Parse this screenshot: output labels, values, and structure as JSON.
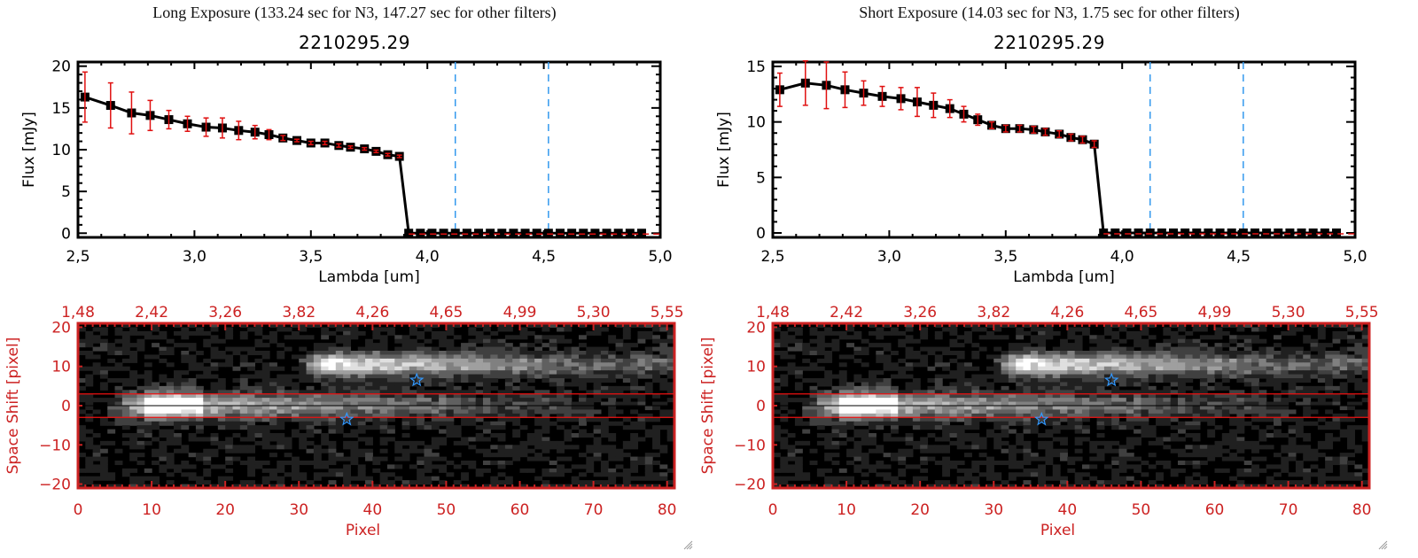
{
  "panels": [
    {
      "exposure_title": "Long Exposure (133.24 sec for N3, 147.27 sec for other filters)",
      "object_title": "2210295.29",
      "chart_data": [
        {
          "type": "line",
          "title": "2210295.29",
          "xlabel": "Lambda [um]",
          "ylabel": "Flux [mJy]",
          "xlim": [
            2.5,
            5.0
          ],
          "ylim": [
            -0.5,
            20.5
          ],
          "xticks": [
            "2.5",
            "3.0",
            "3.5",
            "4.0",
            "4.5",
            "5.0"
          ],
          "yticks": [
            "0",
            "5",
            "10",
            "15",
            "20"
          ],
          "vlines": [
            4.12,
            4.52
          ],
          "series": [
            {
              "name": "flux",
              "x": [
                2.53,
                2.64,
                2.73,
                2.81,
                2.89,
                2.97,
                3.05,
                3.12,
                3.19,
                3.26,
                3.32,
                3.38,
                3.44,
                3.5,
                3.56,
                3.62,
                3.67,
                3.73,
                3.78,
                3.83,
                3.88,
                3.92,
                3.97,
                4.02,
                4.07,
                4.12,
                4.17,
                4.22,
                4.27,
                4.32,
                4.37,
                4.42,
                4.47,
                4.52,
                4.57,
                4.62,
                4.67,
                4.72,
                4.77,
                4.82,
                4.87,
                4.92
              ],
              "y": [
                16.3,
                15.3,
                14.4,
                14.1,
                13.6,
                13.1,
                12.7,
                12.6,
                12.3,
                12.1,
                11.8,
                11.4,
                11.1,
                10.8,
                10.8,
                10.5,
                10.3,
                10.1,
                9.8,
                9.4,
                9.2,
                0,
                0,
                0,
                0,
                0,
                0,
                0,
                0,
                0,
                0,
                0,
                0,
                0,
                0,
                0,
                0,
                0,
                0,
                0,
                0,
                0
              ],
              "err": [
                3.0,
                2.7,
                2.5,
                1.8,
                1.1,
                0.9,
                1.1,
                1.2,
                1.1,
                0.8,
                0.6,
                0.3,
                0.15,
                0.2,
                0.2,
                0.2,
                0.15,
                0.15,
                0.15,
                0.15,
                0.15,
                0,
                0,
                0,
                0,
                0,
                0,
                0,
                0,
                0,
                0,
                0,
                0,
                0,
                0,
                0,
                0,
                0,
                0,
                0,
                0,
                0
              ]
            }
          ]
        },
        {
          "type": "heatmap",
          "xlabel": "Pixel",
          "ylabel": "Space Shift [pixel]",
          "xlim": [
            0,
            81
          ],
          "ylim": [
            -21,
            21
          ],
          "xticks": [
            "0",
            "10",
            "20",
            "30",
            "40",
            "50",
            "60",
            "70",
            "80"
          ],
          "yticks": [
            "-20",
            "-10",
            "0",
            "10",
            "20"
          ],
          "top_ticks": [
            "1.48",
            "2.42",
            "3.26",
            "3.82",
            "4.26",
            "4.65",
            "4.99",
            "5.30",
            "5.55"
          ],
          "aperture_lines": [
            3,
            -3
          ],
          "stars": [
            {
              "x": 46,
              "y": 6.5
            },
            {
              "x": 36.5,
              "y": -3.5
            }
          ]
        }
      ]
    },
    {
      "exposure_title": "Short Exposure (14.03 sec for N3, 1.75 sec for other filters)",
      "object_title": "2210295.29",
      "chart_data": [
        {
          "type": "line",
          "title": "2210295.29",
          "xlabel": "Lambda [um]",
          "ylabel": "Flux [mJy]",
          "xlim": [
            2.5,
            5.0
          ],
          "ylim": [
            -0.4,
            15.4
          ],
          "xticks": [
            "2.5",
            "3.0",
            "3.5",
            "4.0",
            "4.5",
            "5.0"
          ],
          "yticks": [
            "0",
            "5",
            "10",
            "15"
          ],
          "vlines": [
            4.12,
            4.52
          ],
          "series": [
            {
              "name": "flux",
              "x": [
                2.53,
                2.64,
                2.73,
                2.81,
                2.89,
                2.97,
                3.05,
                3.12,
                3.19,
                3.26,
                3.32,
                3.38,
                3.44,
                3.5,
                3.56,
                3.62,
                3.67,
                3.73,
                3.78,
                3.83,
                3.88,
                3.92,
                3.97,
                4.02,
                4.07,
                4.12,
                4.17,
                4.22,
                4.27,
                4.32,
                4.37,
                4.42,
                4.47,
                4.52,
                4.57,
                4.62,
                4.67,
                4.72,
                4.77,
                4.82,
                4.87,
                4.92
              ],
              "y": [
                12.9,
                13.5,
                13.3,
                12.9,
                12.6,
                12.3,
                12.1,
                11.8,
                11.5,
                11.2,
                10.7,
                10.2,
                9.7,
                9.4,
                9.4,
                9.3,
                9.1,
                8.9,
                8.6,
                8.4,
                8.0,
                0,
                0,
                0,
                0,
                0,
                0,
                0,
                0,
                0,
                0,
                0,
                0,
                0,
                0,
                0,
                0,
                0,
                0,
                0,
                0,
                0
              ],
              "err": [
                1.5,
                2.0,
                2.1,
                1.6,
                1.1,
                0.9,
                1.0,
                1.3,
                1.1,
                0.8,
                0.7,
                0.5,
                0.3,
                0.3,
                0.3,
                0.3,
                0.3,
                0.3,
                0.3,
                0.3,
                0.3,
                0,
                0,
                0,
                0,
                0,
                0,
                0,
                0,
                0,
                0,
                0,
                0,
                0,
                0,
                0,
                0,
                0,
                0,
                0,
                0,
                0
              ]
            }
          ]
        },
        {
          "type": "heatmap",
          "xlabel": "Pixel",
          "ylabel": "Space Shift [pixel]",
          "xlim": [
            0,
            81
          ],
          "ylim": [
            -21,
            21
          ],
          "xticks": [
            "0",
            "10",
            "20",
            "30",
            "40",
            "50",
            "60",
            "70",
            "80"
          ],
          "yticks": [
            "-20",
            "-10",
            "0",
            "10",
            "20"
          ],
          "top_ticks": [
            "1.48",
            "2.42",
            "3.26",
            "3.82",
            "4.26",
            "4.65",
            "4.99",
            "5.30",
            "5.55"
          ],
          "aperture_lines": [
            3,
            -3
          ],
          "stars": [
            {
              "x": 46,
              "y": 6.5
            },
            {
              "x": 36.5,
              "y": -3.5
            }
          ]
        }
      ]
    }
  ],
  "colors": {
    "axis": "#000000",
    "errorbar": "#e01010",
    "vline": "#3399ee",
    "image_axis": "#cc2222",
    "star": "#3399ff"
  }
}
